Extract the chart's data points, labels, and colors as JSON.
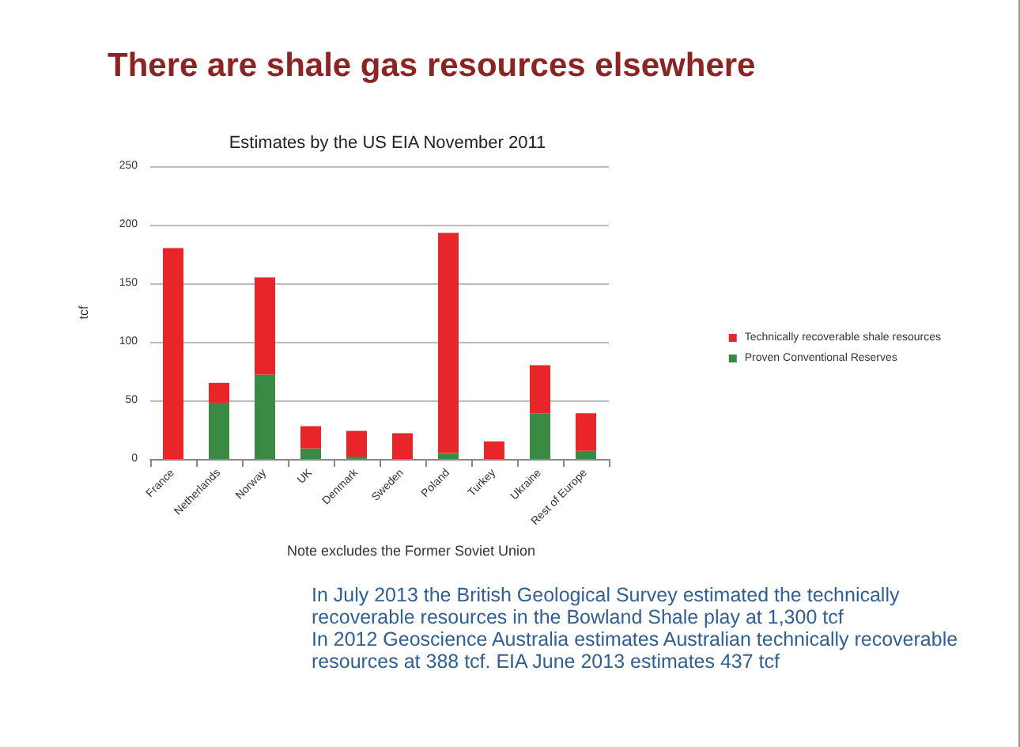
{
  "chart_data": {
    "type": "bar",
    "title": "There are shale gas resources elsewhere",
    "subtitle": "Estimates by the US EIA November 2011",
    "ylabel": "tcf",
    "categories": [
      "France",
      "Netherlands",
      "Norway",
      "UK",
      "Denmark",
      "Sweden",
      "Poland",
      "Turkey",
      "Ukraine",
      "Rest of Europe"
    ],
    "series": [
      {
        "name": "Proven Conventional Reserves",
        "color": "#3a8a44",
        "values": [
          0,
          48,
          72,
          9,
          2,
          0,
          5,
          0,
          39,
          7
        ]
      },
      {
        "name": "Technically recoverable shale resources",
        "color": "#e8262a",
        "values": [
          180,
          17,
          83,
          19,
          22,
          22,
          188,
          15,
          41,
          32
        ]
      }
    ],
    "stacked": true,
    "ylim": [
      0,
      250
    ],
    "yticks": [
      0,
      50,
      100,
      150,
      200,
      250
    ],
    "grid": "y",
    "legend": "right",
    "annotations": [
      "Note excludes the Former Soviet Union",
      "In July 2013 the British Geological Survey estimated the technically recoverable resources in the Bowland Shale play at 1,300 tcf",
      "In 2012 Geoscience Australia estimates Australian technically recoverable resources at 388 tcf. EIA June 2013 estimates 437 tcf"
    ]
  }
}
